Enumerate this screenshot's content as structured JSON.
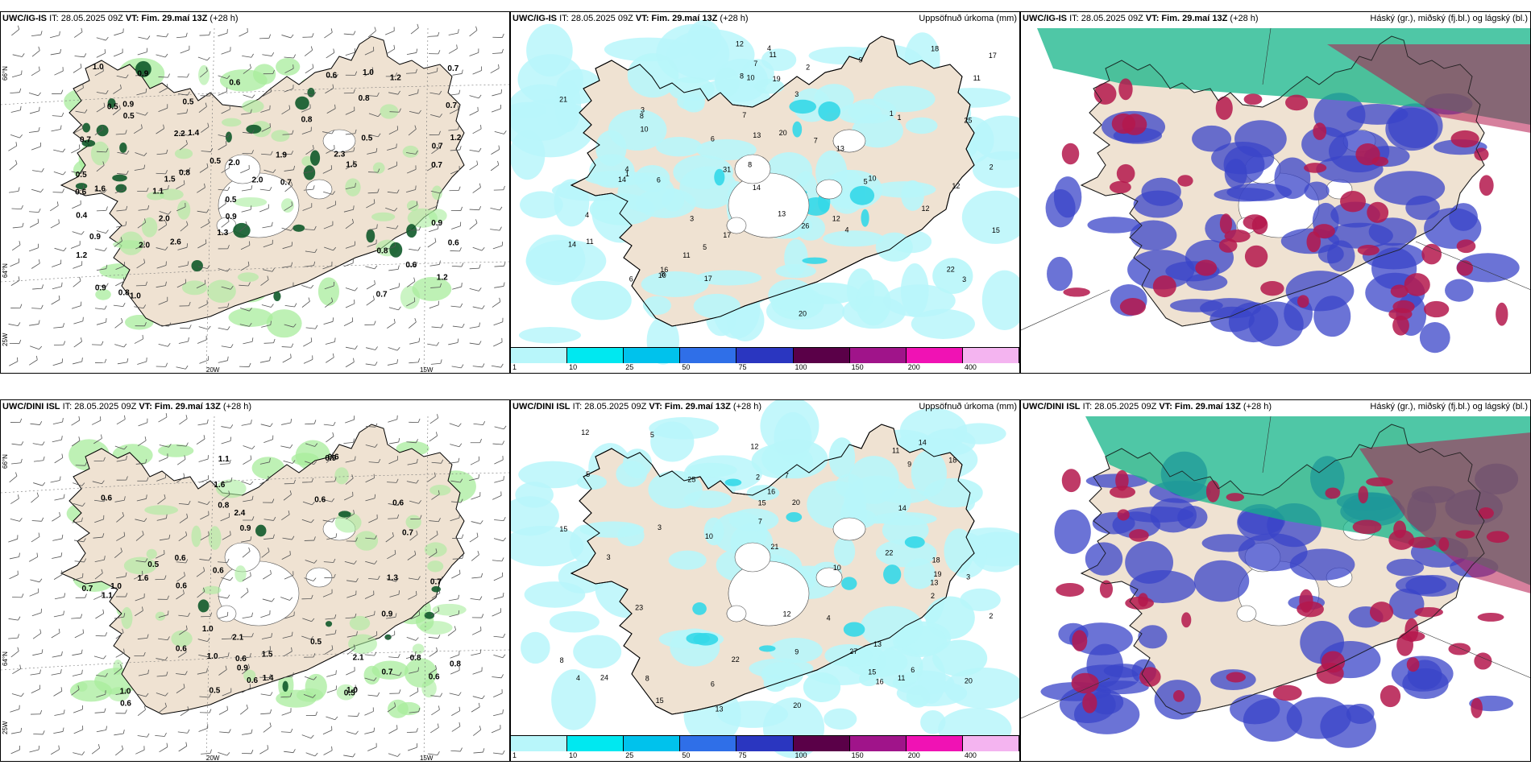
{
  "panels": [
    {
      "id": "p1",
      "model": "UWC/IG-IS",
      "it": "IT: 28.05.2025 09Z",
      "vt_label": "VT: Fim. 29.maí 13Z",
      "lead": "(+28 h)",
      "right": "",
      "type": "wind"
    },
    {
      "id": "p2",
      "model": "UWC/IG-IS",
      "it": "IT: 28.05.2025 09Z",
      "vt_label": "VT: Fim. 29.maí 13Z",
      "lead": "(+28 h)",
      "right": "Uppsöfnuð úrkoma (mm)",
      "type": "precip"
    },
    {
      "id": "p3",
      "model": "UWC/IG-IS",
      "it": "IT: 28.05.2025 09Z",
      "vt_label": "VT: Fim. 29.maí 13Z",
      "lead": "(+28 h)",
      "right": "Háský (gr.), miðský (fj.bl.) og lágský (bl.)",
      "type": "cloud"
    },
    {
      "id": "p4",
      "model": "UWC/DINI ISL",
      "it": "IT: 28.05.2025 09Z",
      "vt_label": "VT: Fim. 29.maí 13Z",
      "lead": "(+28 h)",
      "right": "",
      "type": "wind"
    },
    {
      "id": "p5",
      "model": "UWC/DINI ISL",
      "it": "IT: 28.05.2025 09Z",
      "vt_label": "VT: Fim. 29.maí 13Z",
      "lead": "(+28 h)",
      "right": "Uppsöfnuð úrkoma (mm)",
      "type": "precip"
    },
    {
      "id": "p6",
      "model": "UWC/DINI ISL",
      "it": "IT: 28.05.2025 09Z",
      "vt_label": "VT: Fim. 29.maí 13Z",
      "lead": "(+28 h)",
      "right": "Háský (gr.), miðský (fj.bl.) og lágský (bl.)",
      "type": "cloud"
    }
  ],
  "gridlabels": {
    "lon_20": "20W",
    "lon_15": "15W",
    "lat_66": "66°N",
    "lat_64": "64°N",
    "lat_25": "25W"
  },
  "colorbar": {
    "labels": [
      "1",
      "10",
      "25",
      "50",
      "75",
      "100",
      "150",
      "200",
      "400"
    ],
    "colors": [
      "#b8f6fa",
      "#00e8f0",
      "#00c2ec",
      "#2f6fe8",
      "#2a36c0",
      "#5a0048",
      "#a0148a",
      "#f012b4",
      "#f4b4f0"
    ]
  },
  "colors": {
    "land": "#efe2d2",
    "sea": "#ffffff",
    "precip_light": "#c6f3ee",
    "precip_green": "#a8ec9c",
    "precip_dark": "#0f5a2a",
    "precip_cyan": "#b8f6fa",
    "precip_mid": "#34d8e8",
    "high_cloud": "#14b488",
    "mid_cloud": "#b4184c",
    "low_cloud": "#3a44c8"
  },
  "p1_values": [
    "1.0",
    "0.5",
    "1.0",
    "1.6",
    "0.8",
    "2.0",
    "0.6",
    "1.4",
    "1.2",
    "0.7",
    "1.5",
    "0.5",
    "1.1",
    "0.9",
    "1.0",
    "0.9",
    "0.8",
    "2.0",
    "0.9",
    "1.2",
    "0.7",
    "0.8",
    "0.5",
    "0.7",
    "2.0",
    "0.8",
    "0.5",
    "0.9",
    "0.6",
    "1.5",
    "2.2",
    "0.7",
    "1.2",
    "0.5",
    "0.9",
    "0.6",
    "0.7",
    "2.6",
    "2.0",
    "0.9",
    "0.6",
    "0.5",
    "0.4",
    "0.8",
    "1.3",
    "1.2",
    "0.5",
    "0.7",
    "0.6",
    "2.3",
    "1.9",
    "0.7"
  ],
  "p4_values": [
    "0.5",
    "0.5",
    "2.1",
    "1.0",
    "1.5",
    "0.6",
    "1.0",
    "0.6",
    "0.6",
    "0.6",
    "0.6",
    "0.8",
    "0.9",
    "1.0",
    "0.7",
    "0.9",
    "0.7",
    "1.0",
    "0.8",
    "0.6",
    "0.7",
    "0.6",
    "0.9",
    "0.8",
    "1.1",
    "1.1",
    "0.6",
    "0.6",
    "2.4",
    "2.1",
    "1.0",
    "0.6",
    "0.6",
    "0.5",
    "0.9",
    "0.5",
    "0.6",
    "1.3",
    "0.7",
    "1.6",
    "1.4",
    "1.6"
  ],
  "p2_values": [
    "1",
    "2",
    "1",
    "1",
    "3",
    "8",
    "4",
    "14",
    "11",
    "17",
    "12",
    "5",
    "25",
    "14",
    "15",
    "8",
    "7",
    "13",
    "10",
    "6",
    "26",
    "21",
    "20",
    "19",
    "10",
    "11",
    "13",
    "13",
    "12",
    "5",
    "17",
    "11",
    "12",
    "10",
    "8",
    "9",
    "31",
    "7",
    "14",
    "22",
    "17",
    "16",
    "11",
    "8",
    "4",
    "6",
    "3",
    "12",
    "10",
    "3",
    "4",
    "18",
    "20",
    "3",
    "2",
    "6",
    "4",
    "7"
  ],
  "p5_values": [
    "2",
    "3",
    "5",
    "15",
    "15",
    "20",
    "12",
    "9",
    "10",
    "8",
    "7",
    "14",
    "24",
    "21",
    "15",
    "20",
    "11",
    "18",
    "19",
    "16",
    "13",
    "22",
    "27",
    "25",
    "16",
    "20",
    "15",
    "12",
    "13",
    "6",
    "4",
    "11",
    "12",
    "10",
    "8",
    "5",
    "3",
    "18",
    "23",
    "22",
    "14",
    "13",
    "3",
    "2",
    "4",
    "6",
    "2",
    "7",
    "9"
  ]
}
